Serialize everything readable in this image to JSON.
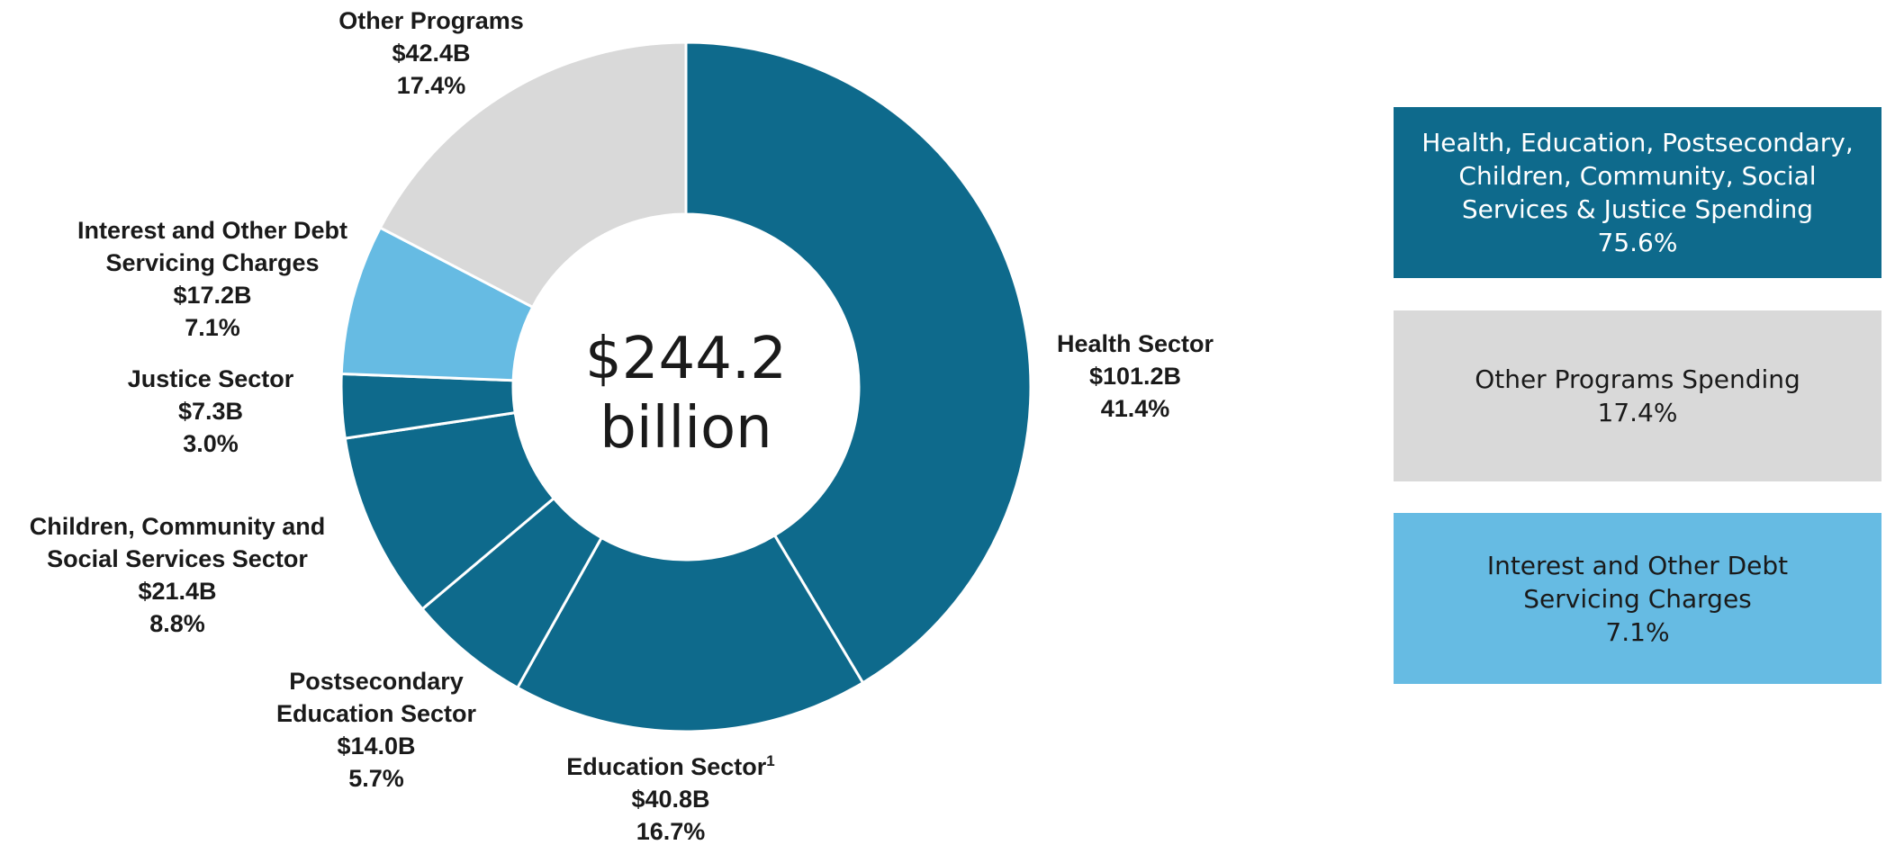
{
  "chart_data": {
    "type": "pie",
    "center_label": [
      "$244.2",
      "billion"
    ],
    "slices": [
      {
        "name": "Health Sector",
        "label_lines": [
          "Health Sector"
        ],
        "amount": "$101.2B",
        "percent_label": "41.4%",
        "value": 101.2,
        "color": "#0e6a8c"
      },
      {
        "name": "Education Sector",
        "label_lines": [
          "Education Sector"
        ],
        "superscript": "1",
        "amount": "$40.8B",
        "percent_label": "16.7%",
        "value": 40.8,
        "color": "#0e6a8c"
      },
      {
        "name": "Postsecondary Education Sector",
        "label_lines": [
          "Postsecondary",
          "Education Sector"
        ],
        "amount": "$14.0B",
        "percent_label": "5.7%",
        "value": 14.0,
        "color": "#0e6a8c"
      },
      {
        "name": "Children, Community and Social Services Sector",
        "label_lines": [
          "Children, Community and",
          "Social Services Sector"
        ],
        "amount": "$21.4B",
        "percent_label": "8.8%",
        "value": 21.4,
        "color": "#0e6a8c"
      },
      {
        "name": "Justice Sector",
        "label_lines": [
          "Justice Sector"
        ],
        "amount": "$7.3B",
        "percent_label": "3.0%",
        "value": 7.3,
        "color": "#0e6a8c"
      },
      {
        "name": "Interest and Other Debt Servicing Charges",
        "label_lines": [
          "Interest and Other Debt",
          "Servicing Charges"
        ],
        "amount": "$17.2B",
        "percent_label": "7.1%",
        "value": 17.2,
        "color": "#66bbe3"
      },
      {
        "name": "Other Programs",
        "label_lines": [
          "Other Programs"
        ],
        "amount": "$42.4B",
        "percent_label": "17.4%",
        "value": 42.4,
        "color": "#d9d9d9"
      }
    ]
  },
  "legend": [
    {
      "lines": [
        "Health, Education, Postsecondary,",
        "Children, Community, Social",
        "Services & Justice Spending"
      ],
      "percent": "75.6%",
      "color": "#0e6a8c"
    },
    {
      "lines": [
        "Other Programs Spending"
      ],
      "percent": "17.4%",
      "color": "#d9d9d9"
    },
    {
      "lines": [
        "Interest and Other Debt",
        "Servicing Charges"
      ],
      "percent": "7.1%",
      "color": "#66bbe3"
    }
  ]
}
